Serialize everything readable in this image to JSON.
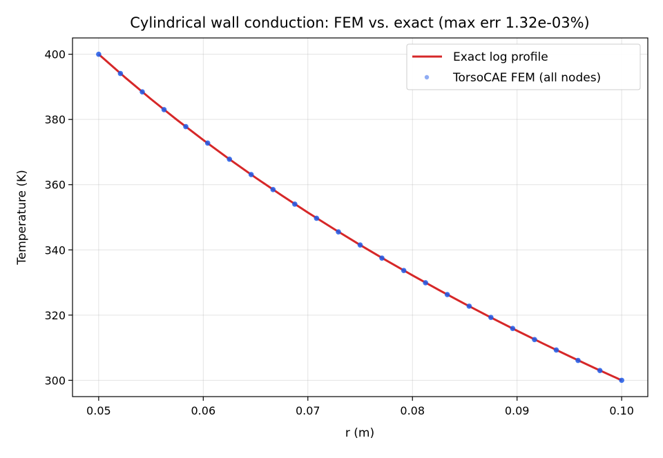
{
  "chart_data": {
    "type": "line",
    "title": "Cylindrical wall conduction: FEM vs. exact (max err 1.32e-03%)",
    "xlabel": "r (m)",
    "ylabel": "Temperature (K)",
    "xlim": [
      0.0475,
      0.1025
    ],
    "ylim": [
      295,
      405
    ],
    "xticks": [
      0.05,
      0.06,
      0.07,
      0.08,
      0.09,
      0.1
    ],
    "xtick_labels": [
      "0.05",
      "0.06",
      "0.07",
      "0.08",
      "0.09",
      "0.10"
    ],
    "yticks": [
      300,
      320,
      340,
      360,
      380,
      400
    ],
    "ytick_labels": [
      "300",
      "320",
      "340",
      "360",
      "380",
      "400"
    ],
    "grid": true,
    "legend_position": "top-right",
    "series": [
      {
        "name": "Exact log profile",
        "kind": "line",
        "color": "#d62728",
        "x": [
          0.05,
          0.0525,
          0.055,
          0.0575,
          0.06,
          0.0625,
          0.065,
          0.0675,
          0.07,
          0.0725,
          0.075,
          0.0775,
          0.08,
          0.0825,
          0.085,
          0.0875,
          0.09,
          0.0925,
          0.095,
          0.0975,
          0.1
        ],
        "y": [
          400.0,
          392.96,
          386.25,
          379.84,
          373.7,
          367.81,
          362.15,
          356.71,
          351.46,
          346.4,
          341.5,
          336.77,
          332.19,
          327.75,
          323.45,
          319.27,
          315.2,
          311.25,
          307.4,
          303.65,
          300.0
        ]
      },
      {
        "name": "TorsoCAE FEM (all nodes)",
        "kind": "scatter",
        "color": "#1f5ae8",
        "x": [
          0.05,
          0.05208,
          0.05417,
          0.05625,
          0.05833,
          0.06042,
          0.0625,
          0.06458,
          0.06667,
          0.06875,
          0.07083,
          0.07292,
          0.075,
          0.07708,
          0.07917,
          0.08125,
          0.08333,
          0.08542,
          0.0875,
          0.08958,
          0.09167,
          0.09375,
          0.09583,
          0.09792,
          0.1
        ],
        "y": [
          400.0,
          394.1,
          388.45,
          383.02,
          377.8,
          372.76,
          367.81,
          363.11,
          358.5,
          354.04,
          349.7,
          345.51,
          341.5,
          337.48,
          333.68,
          329.92,
          326.3,
          322.74,
          319.3,
          315.91,
          312.5,
          309.3,
          306.1,
          302.99,
          300.0
        ]
      }
    ]
  }
}
